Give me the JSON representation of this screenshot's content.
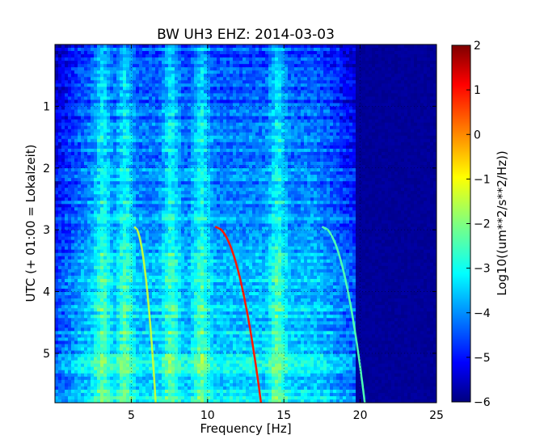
{
  "chart_data": {
    "type": "heatmap",
    "title": "BW UH3 EHZ: 2014-03-03",
    "xlabel": "Frequency [Hz]",
    "ylabel": "UTC (+ 01:00 = Lokalzeit)",
    "xlim": [
      0,
      25
    ],
    "ylim": [
      5.8,
      0
    ],
    "x_ticks": [
      5,
      10,
      15,
      20,
      25
    ],
    "y_ticks": [
      1,
      2,
      3,
      4,
      5
    ],
    "grid": true,
    "colorbar": {
      "label": "Log10((um**2/s**2/Hz))",
      "range": [
        -6,
        2
      ],
      "ticks": [
        2,
        1,
        0,
        -1,
        -2,
        -3,
        -4,
        -5,
        -6
      ],
      "colormap": "jet"
    },
    "features": {
      "background_level": -4.5,
      "high_frequency_level": -5.9,
      "resonance_bands_hz": [
        3.0,
        4.5,
        7.5,
        9.5,
        14.5
      ],
      "chirp_start_time_utc": 2.95,
      "chirp_curves": [
        {
          "freq_at_start_hz": 5.2,
          "freq_at_end_hz": 6.6,
          "level": -1.5
        },
        {
          "freq_at_start_hz": 10.5,
          "freq_at_end_hz": 13.5,
          "level": 0.8
        },
        {
          "freq_at_start_hz": 17.5,
          "freq_at_end_hz": 20.3,
          "level": -2.4
        }
      ]
    }
  }
}
